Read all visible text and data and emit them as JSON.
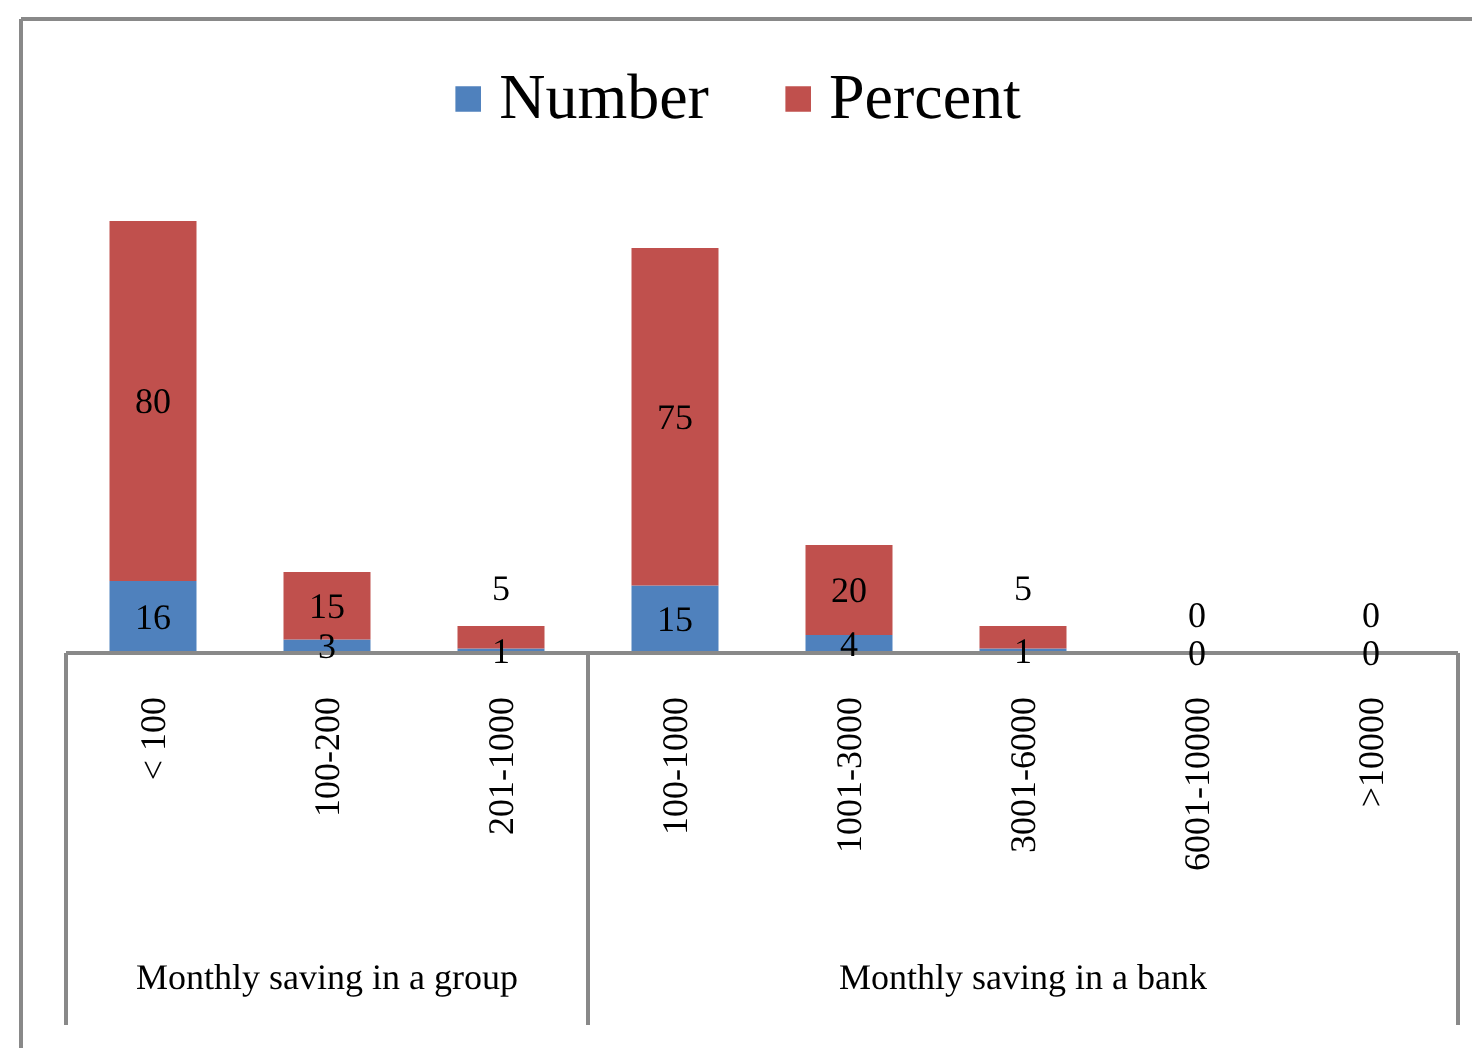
{
  "chart_data": {
    "type": "bar",
    "stacked": true,
    "categories": [
      "< 100",
      "100-200",
      "201-1000",
      "100-1000",
      "1001-3000",
      "3001-6000",
      "6001-10000",
      ">10000"
    ],
    "series": [
      {
        "name": "Number",
        "color": "#4f81bd",
        "values": [
          16,
          3,
          1,
          15,
          4,
          1,
          0,
          0
        ]
      },
      {
        "name": "Percent",
        "color": "#c0504d",
        "values": [
          80,
          15,
          5,
          75,
          20,
          5,
          0,
          0
        ]
      }
    ],
    "data_labels": true,
    "legend": "top",
    "tick_labels": "x",
    "annotations": [
      "Monthly saving in a group",
      "Monthly saving in a bank"
    ]
  }
}
